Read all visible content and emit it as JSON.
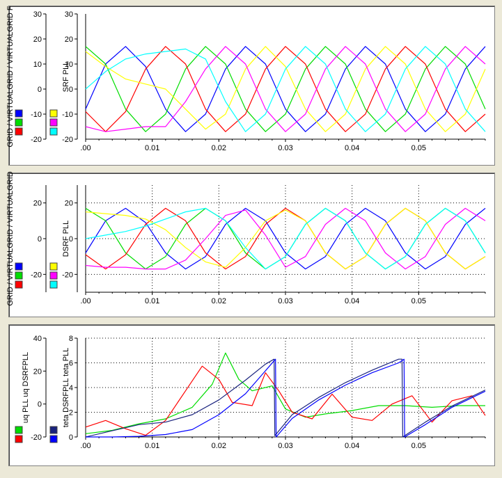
{
  "chart_data": [
    {
      "type": "line",
      "panel": "top",
      "ylabel_left": "GRID / VIRTUALGRID / VIRTUALGRID F",
      "ylabel_right": "SRF PLL",
      "xlim": [
        0,
        0.06
      ],
      "ylim": [
        -20,
        30
      ],
      "yticks": [
        30,
        20,
        10,
        0,
        -10,
        -20
      ],
      "yticks_right": [
        30,
        20,
        10,
        0,
        -10,
        -20
      ],
      "xticks": [
        0.0,
        0.01,
        0.02,
        0.03,
        0.04,
        0.05
      ],
      "xtick_labels": [
        ".00",
        "0.01",
        "0.02",
        "0.03",
        "0.04",
        "0.05"
      ],
      "grid": false,
      "legend": "bottom-left",
      "series": [
        {
          "color": "#0000ff",
          "x": [
            0,
            0.003,
            0.006,
            0.009,
            0.012,
            0.015,
            0.018,
            0.021,
            0.024,
            0.027,
            0.03,
            0.033,
            0.036,
            0.039,
            0.042,
            0.045,
            0.048,
            0.051,
            0.054,
            0.057,
            0.06
          ],
          "y": [
            -8,
            10,
            17,
            9,
            -8,
            -17,
            -10,
            8,
            17,
            10,
            -8,
            -17,
            -10,
            8,
            17,
            10,
            -8,
            -17,
            -10,
            8,
            17
          ]
        },
        {
          "color": "#00dd00",
          "x": [
            0,
            0.003,
            0.006,
            0.009,
            0.012,
            0.015,
            0.018,
            0.021,
            0.024,
            0.027,
            0.03,
            0.033,
            0.036,
            0.039,
            0.042,
            0.045,
            0.048,
            0.051,
            0.054,
            0.057,
            0.06
          ],
          "y": [
            17,
            10,
            -8,
            -17,
            -10,
            8,
            17,
            10,
            -8,
            -17,
            -10,
            8,
            17,
            10,
            -8,
            -17,
            -10,
            8,
            17,
            10,
            -8
          ]
        },
        {
          "color": "#ff0000",
          "x": [
            0,
            0.003,
            0.006,
            0.009,
            0.012,
            0.015,
            0.018,
            0.021,
            0.024,
            0.027,
            0.03,
            0.033,
            0.036,
            0.039,
            0.042,
            0.045,
            0.048,
            0.051,
            0.054,
            0.057,
            0.06
          ],
          "y": [
            -9,
            -17,
            -9,
            8,
            17,
            10,
            -8,
            -17,
            -10,
            8,
            17,
            10,
            -8,
            -17,
            -10,
            8,
            17,
            10,
            -8,
            -17,
            -10
          ]
        },
        {
          "color": "#ffff00",
          "x": [
            0,
            0.003,
            0.006,
            0.009,
            0.012,
            0.015,
            0.018,
            0.021,
            0.024,
            0.027,
            0.03,
            0.033,
            0.036,
            0.039,
            0.042,
            0.045,
            0.048,
            0.051,
            0.054,
            0.057,
            0.06
          ],
          "y": [
            15,
            9,
            4,
            2,
            0,
            -8,
            -16,
            -10,
            8,
            17,
            9,
            -8,
            -17,
            -10,
            8,
            17,
            10,
            -8,
            -17,
            -10,
            8
          ]
        },
        {
          "color": "#ff00ff",
          "x": [
            0,
            0.003,
            0.006,
            0.009,
            0.012,
            0.015,
            0.018,
            0.021,
            0.024,
            0.027,
            0.03,
            0.033,
            0.036,
            0.039,
            0.042,
            0.045,
            0.048,
            0.051,
            0.054,
            0.057,
            0.06
          ],
          "y": [
            -15,
            -17,
            -16,
            -15,
            -15,
            -5,
            8,
            17,
            10,
            -8,
            -17,
            -10,
            8,
            17,
            10,
            -8,
            -17,
            -10,
            8,
            17,
            10
          ]
        },
        {
          "color": "#00ffff",
          "x": [
            0,
            0.003,
            0.006,
            0.009,
            0.012,
            0.015,
            0.018,
            0.021,
            0.024,
            0.027,
            0.03,
            0.033,
            0.036,
            0.039,
            0.042,
            0.045,
            0.048,
            0.051,
            0.054,
            0.057,
            0.06
          ],
          "y": [
            0,
            7,
            12,
            14,
            15,
            16,
            12,
            -5,
            -17,
            -10,
            8,
            17,
            10,
            -8,
            -17,
            -10,
            8,
            17,
            10,
            -8,
            -17
          ]
        }
      ]
    },
    {
      "type": "line",
      "panel": "middle",
      "ylabel_left": "GRID / VIRTUALGRID / VIRTUALGRID",
      "ylabel_right": "DSRF PLL",
      "xlim": [
        0,
        0.06
      ],
      "ylim": [
        -30,
        30
      ],
      "yticks": [
        20,
        0,
        -20
      ],
      "yticks_right": [
        20,
        0,
        -20
      ],
      "xticks": [
        0.0,
        0.01,
        0.02,
        0.03,
        0.04,
        0.05
      ],
      "xtick_labels": [
        ".00",
        "0.01",
        "0.02",
        "0.03",
        "0.04",
        "0.05"
      ],
      "grid": true,
      "legend": "bottom-left",
      "series": [
        {
          "color": "#0000ff",
          "x": [
            0,
            0.003,
            0.006,
            0.009,
            0.012,
            0.015,
            0.018,
            0.021,
            0.024,
            0.027,
            0.03,
            0.033,
            0.036,
            0.039,
            0.042,
            0.045,
            0.048,
            0.051,
            0.054,
            0.057,
            0.06
          ],
          "y": [
            -8,
            10,
            17,
            9,
            -8,
            -17,
            -10,
            8,
            17,
            10,
            -8,
            -17,
            -10,
            8,
            17,
            10,
            -8,
            -17,
            -10,
            8,
            17
          ]
        },
        {
          "color": "#00dd00",
          "x": [
            0,
            0.003,
            0.006,
            0.009,
            0.012,
            0.015,
            0.018,
            0.021,
            0.024,
            0.027,
            0.03,
            0.033,
            0.036,
            0.039,
            0.042,
            0.045,
            0.048,
            0.051,
            0.054,
            0.057,
            0.06
          ],
          "y": [
            17,
            10,
            -8,
            -17,
            -10,
            8,
            17,
            10,
            -8,
            -17,
            -10,
            8,
            17,
            10,
            -8,
            -17,
            -10,
            8,
            17,
            10,
            -8
          ]
        },
        {
          "color": "#ff0000",
          "x": [
            0,
            0.003,
            0.006,
            0.009,
            0.012,
            0.015,
            0.018,
            0.021,
            0.024,
            0.027,
            0.03,
            0.033,
            0.036,
            0.039,
            0.042,
            0.045,
            0.048,
            0.051,
            0.054,
            0.057,
            0.06
          ],
          "y": [
            -9,
            -17,
            -9,
            8,
            17,
            10,
            -8,
            -17,
            -10,
            8,
            17,
            10,
            -8,
            -17,
            -10,
            8,
            17,
            10,
            -8,
            -17,
            -10
          ]
        },
        {
          "color": "#ffff00",
          "x": [
            0,
            0.003,
            0.006,
            0.009,
            0.012,
            0.015,
            0.018,
            0.021,
            0.024,
            0.027,
            0.03,
            0.033,
            0.036,
            0.039,
            0.042,
            0.045,
            0.048,
            0.051,
            0.054,
            0.057,
            0.06
          ],
          "y": [
            15,
            14,
            13,
            11,
            5,
            -5,
            -13,
            -16,
            -5,
            10,
            16,
            10,
            -8,
            -17,
            -10,
            8,
            17,
            10,
            -8,
            -17,
            -10
          ]
        },
        {
          "color": "#ff00ff",
          "x": [
            0,
            0.003,
            0.006,
            0.009,
            0.012,
            0.015,
            0.018,
            0.021,
            0.024,
            0.027,
            0.03,
            0.033,
            0.036,
            0.039,
            0.042,
            0.045,
            0.048,
            0.051,
            0.054,
            0.057,
            0.06
          ],
          "y": [
            -15,
            -16,
            -16,
            -17,
            -17,
            -12,
            0,
            13,
            16,
            2,
            -16,
            -10,
            8,
            17,
            10,
            -8,
            -17,
            -10,
            8,
            17,
            10
          ]
        },
        {
          "color": "#00ffff",
          "x": [
            0,
            0.003,
            0.006,
            0.009,
            0.012,
            0.015,
            0.018,
            0.021,
            0.024,
            0.027,
            0.03,
            0.033,
            0.036,
            0.039,
            0.042,
            0.045,
            0.048,
            0.051,
            0.054,
            0.057,
            0.06
          ],
          "y": [
            0,
            2,
            4,
            7,
            11,
            15,
            17,
            10,
            -5,
            -17,
            -10,
            8,
            17,
            10,
            -8,
            -17,
            -10,
            8,
            17,
            10,
            -8
          ]
        }
      ]
    },
    {
      "type": "line",
      "panel": "bottom",
      "ylabel_left": "uq PLL uq DSRFPLL",
      "ylabel_right": "teta DSRFPLL teta PLL",
      "xlim": [
        0,
        0.06
      ],
      "ylim_left": [
        -20,
        40
      ],
      "ylim_right": [
        0,
        8
      ],
      "yticks": [
        40,
        20,
        0,
        -20
      ],
      "yticks_right": [
        8,
        6,
        4,
        2,
        0
      ],
      "xticks": [
        0.0,
        0.01,
        0.02,
        0.03,
        0.04,
        0.05
      ],
      "xtick_labels": [
        ".00",
        "0.01",
        "0.02",
        "0.03",
        "0.04",
        "0.05"
      ],
      "grid": true,
      "legend": "bottom-left",
      "series": [
        {
          "color": "#00dd00",
          "axis": "left",
          "x": [
            0,
            0.004,
            0.008,
            0.012,
            0.016,
            0.019,
            0.021,
            0.023,
            0.025,
            0.028,
            0.03,
            0.033,
            0.036,
            0.04,
            0.044,
            0.048,
            0.052,
            0.056,
            0.06
          ],
          "y": [
            -18,
            -16,
            -12,
            -9,
            -2,
            12,
            31,
            15,
            8,
            11,
            -3,
            -8,
            -6,
            -4,
            -1,
            -1,
            -2,
            -1,
            -1
          ]
        },
        {
          "color": "#ff0000",
          "axis": "left",
          "x": [
            0,
            0.003,
            0.006,
            0.009,
            0.012,
            0.015,
            0.0175,
            0.02,
            0.022,
            0.025,
            0.027,
            0.029,
            0.031,
            0.034,
            0.037,
            0.04,
            0.043,
            0.046,
            0.049,
            0.052,
            0.055,
            0.058,
            0.06
          ],
          "y": [
            -14,
            -10,
            -15,
            -19,
            -10,
            8,
            23,
            15,
            1,
            -1,
            19,
            8,
            -5,
            -9,
            6,
            -8,
            -10,
            0,
            5,
            -11,
            2,
            5,
            -7
          ]
        },
        {
          "color": "#1a237e",
          "axis": "right",
          "x": [
            0,
            0.004,
            0.008,
            0.012,
            0.016,
            0.02,
            0.024,
            0.027,
            0.0283,
            0.0284,
            0.031,
            0.035,
            0.039,
            0.043,
            0.047,
            0.0475,
            0.0476,
            0.051,
            0.055,
            0.06
          ],
          "y": [
            0,
            0.5,
            1,
            1.2,
            1.8,
            3,
            4.6,
            5.9,
            6.3,
            0.1,
            1.8,
            3.2,
            4.4,
            5.4,
            6.3,
            6.3,
            0,
            1.2,
            2.5,
            3.8
          ]
        },
        {
          "color": "#0000ff",
          "axis": "right",
          "x": [
            0,
            0.004,
            0.008,
            0.012,
            0.016,
            0.02,
            0.024,
            0.0285,
            0.0286,
            0.031,
            0.035,
            0.039,
            0.043,
            0.047,
            0.0478,
            0.0479,
            0.051,
            0.055,
            0.06
          ],
          "y": [
            0,
            0,
            0.05,
            0.2,
            0.6,
            1.8,
            3.5,
            6.3,
            0,
            1.5,
            3,
            4.2,
            5.2,
            6,
            6.3,
            0,
            1,
            2.4,
            3.7
          ]
        }
      ]
    }
  ]
}
